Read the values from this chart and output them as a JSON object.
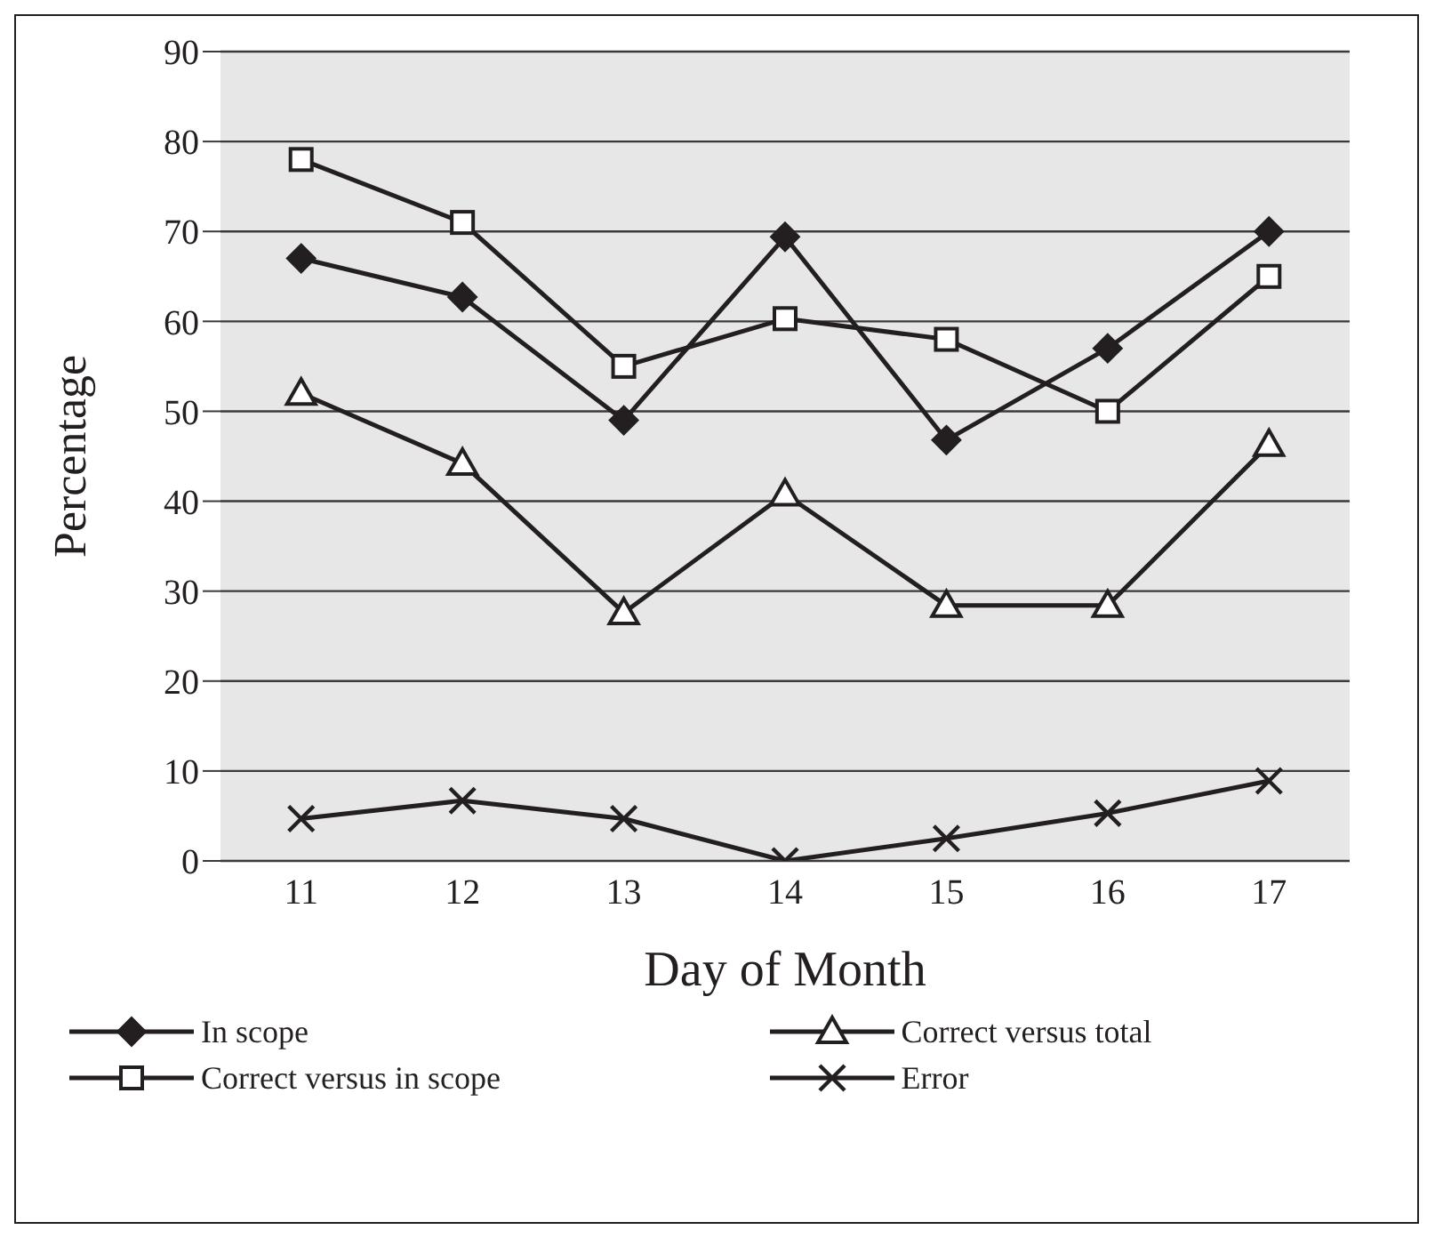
{
  "chart_data": {
    "type": "line",
    "xlabel": "Day of Month",
    "ylabel": "Percentage",
    "categories": [
      "11",
      "12",
      "13",
      "14",
      "15",
      "16",
      "17"
    ],
    "series": [
      {
        "name": "In scope",
        "color": "#231f20",
        "marker": "diamond",
        "values": [
          67,
          62.7,
          49,
          69.4,
          46.8,
          57,
          70
        ]
      },
      {
        "name": "Correct versus in scope",
        "color": "#231f20",
        "marker": "square",
        "values": [
          78,
          71,
          55,
          60.3,
          58,
          50,
          65
        ]
      },
      {
        "name": "Correct versus total",
        "color": "#231f20",
        "marker": "triangle",
        "values": [
          52,
          44.2,
          27.6,
          40.8,
          28.4,
          28.4,
          46.3
        ]
      },
      {
        "name": "Error",
        "color": "#231f20",
        "marker": "cross",
        "values": [
          4.7,
          6.7,
          4.7,
          0,
          2.5,
          5.3,
          8.9
        ]
      }
    ],
    "ylim": [
      0,
      90
    ],
    "yticks": [
      0,
      10,
      20,
      30,
      40,
      50,
      60,
      70,
      80,
      90
    ],
    "grid": "y",
    "legend": "bottom",
    "line_style": "solid"
  }
}
